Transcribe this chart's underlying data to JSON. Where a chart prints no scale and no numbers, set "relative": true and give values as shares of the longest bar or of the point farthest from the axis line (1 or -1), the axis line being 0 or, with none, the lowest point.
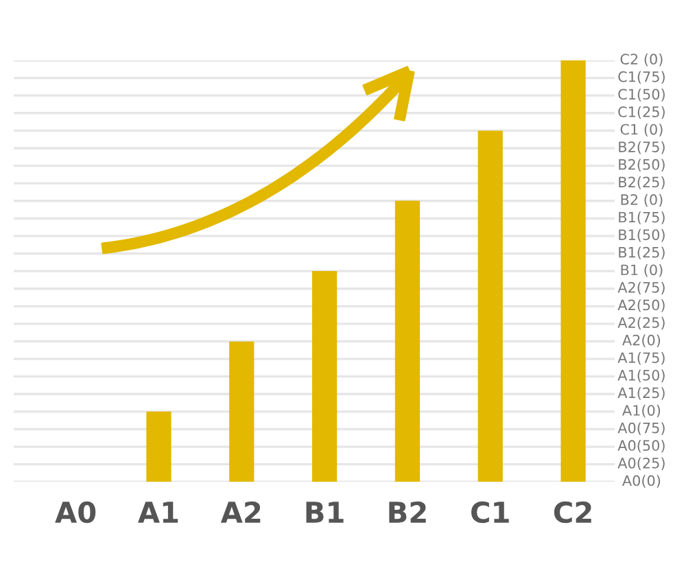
{
  "chart_data": {
    "type": "bar",
    "categories": [
      "A0",
      "A1",
      "A2",
      "B1",
      "B2",
      "C1",
      "C2"
    ],
    "values": [
      0,
      0.167,
      0.333,
      0.5,
      0.667,
      0.833,
      1
    ],
    "relative": true,
    "color": "#e2b800",
    "annotations": [
      "A0(0)",
      "A0(25)",
      "A0(50)",
      "A0(75)",
      "A1(0)",
      "A1(25)",
      "A1(50)",
      "A1(75)",
      "A2(0)",
      "A2(25)",
      "A2(50)",
      "A2(75)",
      "B1 (0)",
      "B1(25)",
      "B1(50)",
      "B1(75)",
      "B2 (0)",
      "B2(25)",
      "B2(50)",
      "B2(75)",
      "C1 (0)",
      "C1(25)",
      "C1(50)",
      "C1(75)",
      "C2 (0)"
    ],
    "grid": "y"
  }
}
